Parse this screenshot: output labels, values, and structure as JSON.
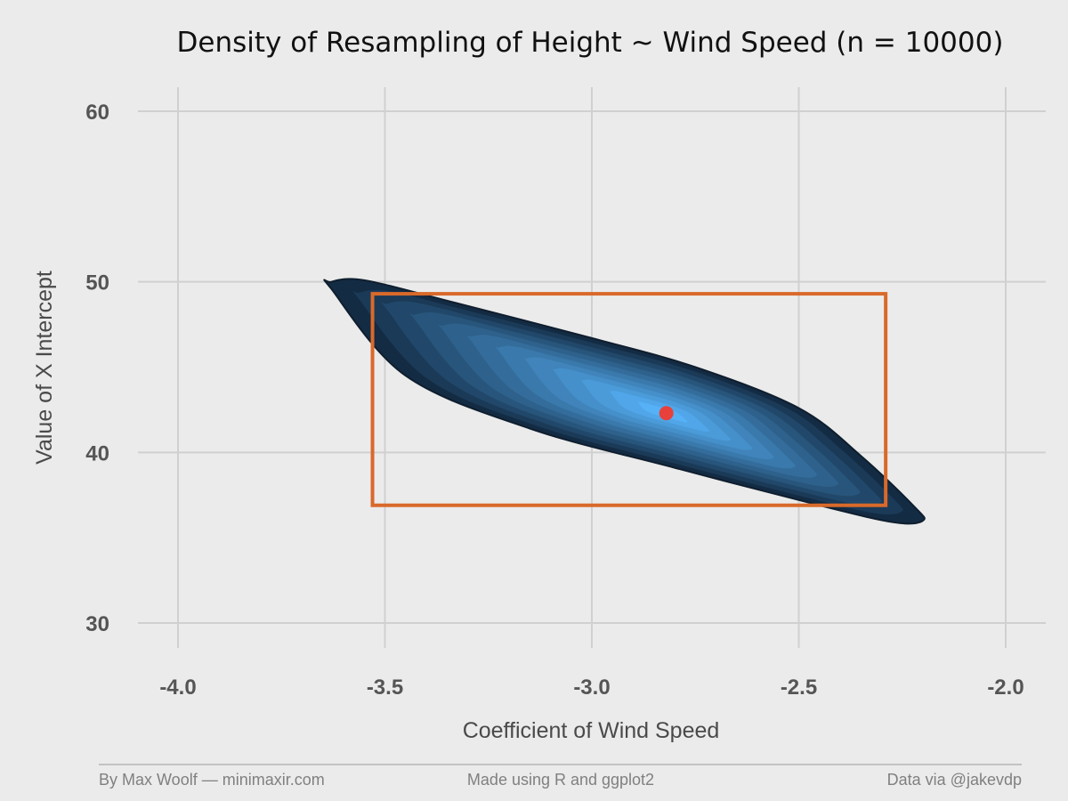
{
  "chart_data": {
    "type": "density2d",
    "title": "Density of Resampling of Height ~ Wind Speed (n = 10000)",
    "xlabel": "Coefficient of Wind Speed",
    "ylabel": "Value of X Intercept",
    "xlim": [
      -4.0,
      -2.0
    ],
    "ylim": [
      30,
      60
    ],
    "x_ticks": [
      {
        "value": -4.0,
        "label": "-4.0"
      },
      {
        "value": -3.5,
        "label": "-3.5"
      },
      {
        "value": -3.0,
        "label": "-3.0"
      },
      {
        "value": -2.5,
        "label": "-2.5"
      },
      {
        "value": -2.0,
        "label": "-2.0"
      }
    ],
    "y_ticks": [
      {
        "value": 30,
        "label": "30"
      },
      {
        "value": 40,
        "label": "40"
      },
      {
        "value": 50,
        "label": "50"
      },
      {
        "value": 60,
        "label": "60"
      }
    ],
    "grid": true,
    "density": {
      "center": [
        -2.82,
        42.3
      ],
      "outer_contour": [
        [
          -3.63,
          50.0
        ],
        [
          -3.55,
          50.1
        ],
        [
          -3.35,
          48.9
        ],
        [
          -3.0,
          46.7
        ],
        [
          -2.75,
          45.0
        ],
        [
          -2.5,
          42.6
        ],
        [
          -2.35,
          39.8
        ],
        [
          -2.22,
          36.8
        ],
        [
          -2.2,
          36.0
        ],
        [
          -2.27,
          35.9
        ],
        [
          -2.45,
          36.9
        ],
        [
          -2.8,
          39.1
        ],
        [
          -3.15,
          41.4
        ],
        [
          -3.45,
          44.5
        ],
        [
          -3.63,
          49.6
        ]
      ],
      "levels": 12,
      "color_low": "#132b43",
      "color_high": "#56b1f7"
    },
    "mean_point": {
      "x": -2.82,
      "y": 42.3,
      "color": "#e8403a"
    },
    "confidence_box": {
      "x": [
        -3.53,
        -2.29
      ],
      "y": [
        36.9,
        49.3
      ],
      "color": "#d9692a"
    }
  },
  "footer": {
    "left": "By Max Woolf — minimaxir.com",
    "center": "Made using R and ggplot2",
    "right": "Data via @jakevdp"
  },
  "colors": {
    "background": "#ebebeb",
    "grid": "#d0d0d0",
    "outline": "#0f1e2e"
  }
}
